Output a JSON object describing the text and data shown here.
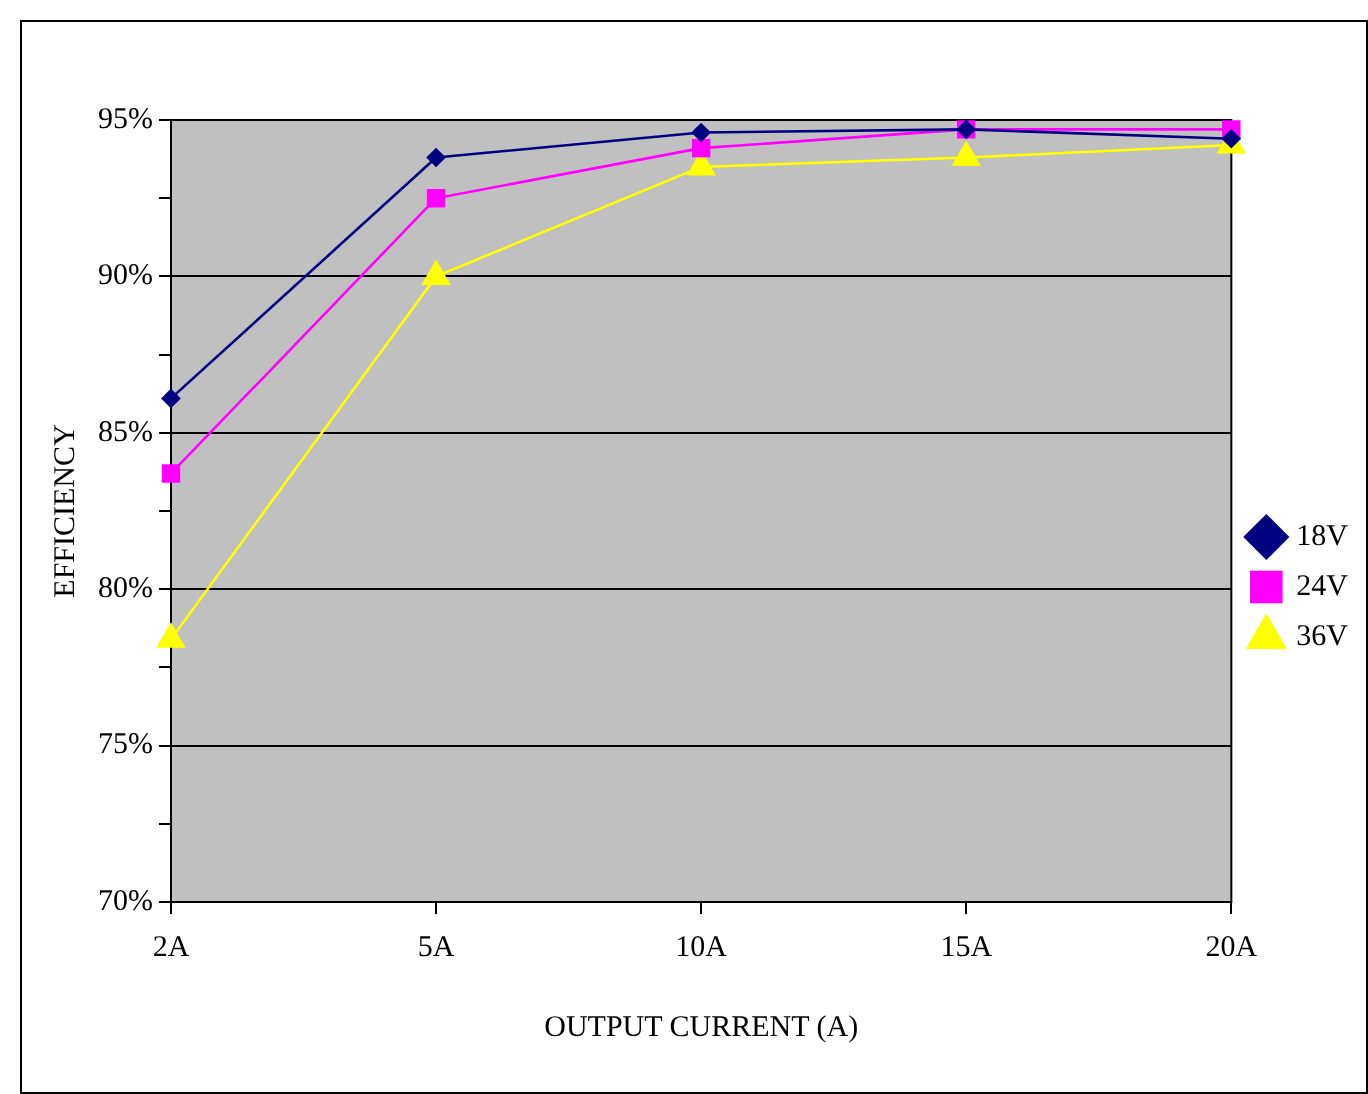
{
  "chart_data": {
    "type": "line",
    "xlabel": "OUTPUT CURRENT (A)",
    "ylabel": "EFFICIENCY",
    "categories": [
      "2A",
      "5A",
      "10A",
      "15A",
      "20A"
    ],
    "series": [
      {
        "name": "18V",
        "color": "#000080",
        "marker": "diamond",
        "values": [
          86.1,
          93.8,
          94.6,
          94.7,
          94.4
        ]
      },
      {
        "name": "24V",
        "color": "#ff00ff",
        "marker": "square",
        "values": [
          83.7,
          92.5,
          94.1,
          94.7,
          94.7
        ]
      },
      {
        "name": "36V",
        "color": "#ffff00",
        "marker": "triangle",
        "values": [
          78.4,
          90.0,
          93.5,
          93.8,
          94.2
        ]
      }
    ],
    "ylim": [
      70,
      95
    ],
    "yticks": [
      {
        "value": 70,
        "label": "70%"
      },
      {
        "value": 72.5,
        "label": null
      },
      {
        "value": 75,
        "label": "75%"
      },
      {
        "value": 77.5,
        "label": null
      },
      {
        "value": 80,
        "label": "80%"
      },
      {
        "value": 82.5,
        "label": null
      },
      {
        "value": 85,
        "label": "85%"
      },
      {
        "value": 87.5,
        "label": null
      },
      {
        "value": 90,
        "label": "90%"
      },
      {
        "value": 92.5,
        "label": null
      },
      {
        "value": 95,
        "label": "95%"
      }
    ],
    "grid": "y",
    "legend": "right",
    "line_style": "solid"
  }
}
